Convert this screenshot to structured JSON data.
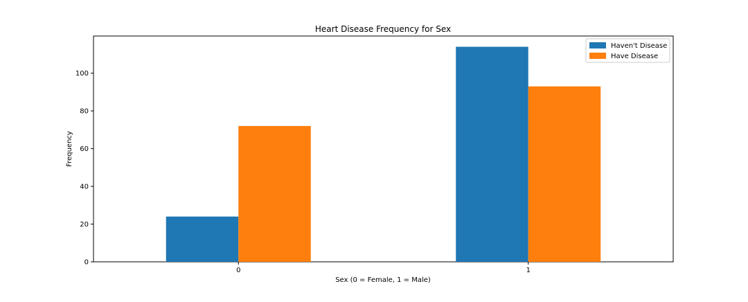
{
  "chart_data": {
    "type": "bar",
    "title": "Heart Disease Frequency for Sex",
    "xlabel": "Sex (0 = Female, 1 = Male)",
    "ylabel": "Frequency",
    "categories": [
      "0",
      "1"
    ],
    "series": [
      {
        "name": "Haven't Disease",
        "values": [
          24,
          114
        ],
        "color": "#1f77b4"
      },
      {
        "name": "Have Disease",
        "values": [
          72,
          93
        ],
        "color": "#ff7f0e"
      }
    ],
    "ylim": [
      0,
      119.7
    ],
    "yticks": [
      "0",
      "20",
      "40",
      "60",
      "80",
      "100"
    ],
    "grid": false,
    "legend_position": "top-right"
  }
}
